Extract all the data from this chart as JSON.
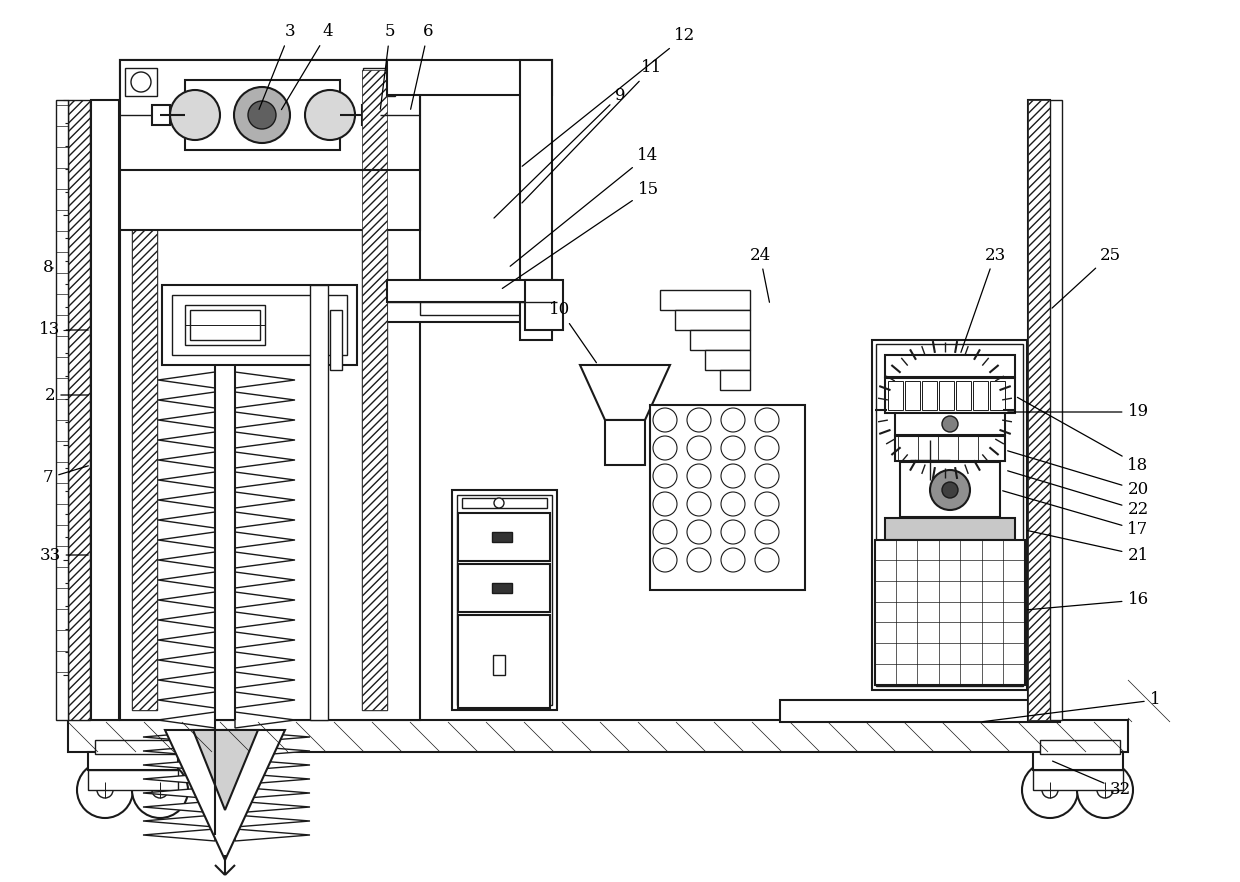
{
  "bg_color": "#ffffff",
  "line_color": "#1a1a1a",
  "fig_width": 12.4,
  "fig_height": 8.82,
  "lw": 1.0,
  "lw2": 1.5,
  "lw3": 2.0
}
